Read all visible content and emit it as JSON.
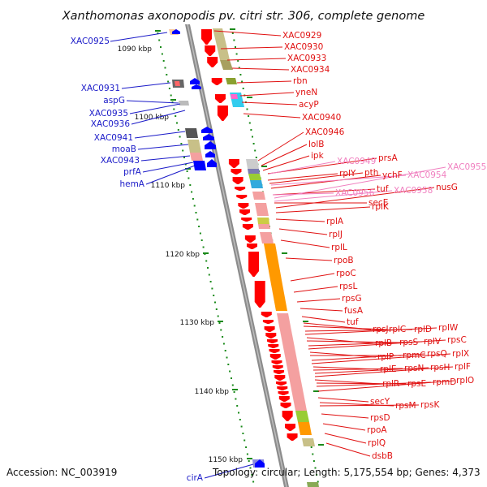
{
  "title": "Xanthomonas axonopodis pv. citri str. 306, complete genome",
  "footer": {
    "accession": "Accession: NC_003919",
    "summary": "Topology: circular; Length: 5,175,554 bp; Genes: 4,373"
  },
  "colors": {
    "forward_label": "#1a1ac8",
    "reverse_label": "#e01010",
    "reverse_label_light": "#f080c0",
    "backbone": "#8c8c8c",
    "tick": "#1a8a1a",
    "reverse_gene": "#ff0000",
    "forward_gene": "#0000ff",
    "cog_orange": "#ff9900",
    "cog_pink": "#f4a0a0",
    "cog_olive": "#c8c088",
    "cog_green": "#99cc33"
  },
  "kbp_ticks": [
    "1090 kbp",
    "1100 kbp",
    "1110 kbp",
    "1120 kbp",
    "1130 kbp",
    "1140 kbp",
    "1150 kbp"
  ],
  "forward_genes": [
    "XAC0925",
    "XAC0931",
    "aspG",
    "XAC0935",
    "XAC0936",
    "XAC0941",
    "moaB",
    "XAC0943",
    "prfA",
    "hemA",
    "cirA"
  ],
  "reverse_genes": [
    "XAC0929",
    "XAC0930",
    "XAC0933",
    "XAC0934",
    "rbn",
    "yneN",
    "acyP",
    "XAC0940",
    "XAC0946",
    "lolB",
    "ipk",
    "prsA",
    "rplY",
    "pth",
    "ychF",
    "tuf",
    "secE",
    "nusG",
    "rplK",
    "rplA",
    "rplJ",
    "rplL",
    "rpoB",
    "rpoC",
    "rpsL",
    "rpsG",
    "fusA",
    "tuf",
    "rpsJ",
    "rplC",
    "rplD",
    "rplW",
    "rplB",
    "rpsS",
    "rplV",
    "rpsC",
    "rplP",
    "rpmC",
    "rpsQ",
    "rplX",
    "rplE",
    "rpsN",
    "rpsH",
    "rplF",
    "rplR",
    "rpsE",
    "rpmD",
    "rplO",
    "secY",
    "rpsM",
    "rpsK",
    "rpsD",
    "rpoA",
    "rplQ",
    "dsbB"
  ],
  "reverse_genes_light": [
    "XAC0949",
    "XAC0954",
    "XAC0955",
    "XAC0956",
    "XAC0958"
  ]
}
